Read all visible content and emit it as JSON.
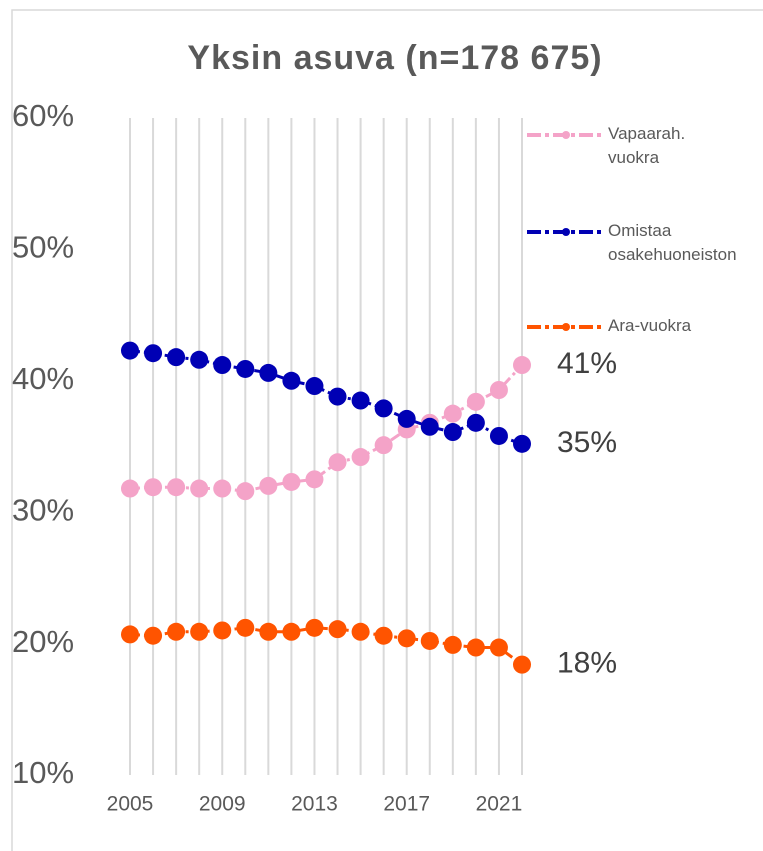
{
  "chart_data": {
    "type": "line",
    "title": "Yksin asuva (n=178 675)",
    "x": [
      2005,
      2006,
      2007,
      2008,
      2009,
      2010,
      2011,
      2012,
      2013,
      2014,
      2015,
      2016,
      2017,
      2018,
      2019,
      2020,
      2021,
      2022
    ],
    "xlim": [
      2005,
      2022
    ],
    "xticks": [
      2005,
      2009,
      2013,
      2017,
      2021
    ],
    "ylim": [
      10,
      60
    ],
    "yticks": [
      {
        "value": 10,
        "label": "10%"
      },
      {
        "value": 20,
        "label": "20%"
      },
      {
        "value": 30,
        "label": "30%"
      },
      {
        "value": 40,
        "label": "40%"
      },
      {
        "value": 50,
        "label": "50%"
      },
      {
        "value": 60,
        "label": "60%"
      }
    ],
    "grid": true,
    "legend": "right",
    "series": [
      {
        "name": "Vapaarah. vuokra",
        "color": "#f4a3c8",
        "values": [
          31.8,
          31.9,
          31.9,
          31.8,
          31.8,
          31.6,
          32.0,
          32.3,
          32.5,
          33.8,
          34.2,
          35.1,
          36.3,
          36.8,
          37.5,
          38.4,
          39.3,
          41.2
        ],
        "value_labels": [
          null,
          null,
          null,
          null,
          null,
          null,
          null,
          null,
          null,
          null,
          null,
          null,
          null,
          null,
          null,
          null,
          null,
          "41%"
        ]
      },
      {
        "name": "Omistaa osakehuoneiston",
        "color": "#0000b4",
        "values": [
          42.3,
          42.1,
          41.8,
          41.6,
          41.2,
          40.9,
          40.6,
          40.0,
          39.6,
          38.8,
          38.5,
          37.9,
          37.1,
          36.5,
          36.1,
          36.8,
          35.8,
          35.2
        ],
        "value_labels": [
          null,
          null,
          null,
          null,
          null,
          null,
          null,
          null,
          null,
          null,
          null,
          null,
          null,
          null,
          null,
          null,
          null,
          "35%"
        ]
      },
      {
        "name": "Ara-vuokra",
        "color": "#ff5400",
        "values": [
          20.7,
          20.6,
          20.9,
          20.9,
          21.0,
          21.2,
          20.9,
          20.9,
          21.2,
          21.1,
          20.9,
          20.6,
          20.4,
          20.2,
          19.9,
          19.7,
          19.7,
          18.4
        ],
        "value_labels": [
          null,
          null,
          null,
          null,
          null,
          null,
          null,
          null,
          null,
          null,
          null,
          null,
          null,
          null,
          null,
          null,
          null,
          "18%"
        ]
      }
    ]
  }
}
